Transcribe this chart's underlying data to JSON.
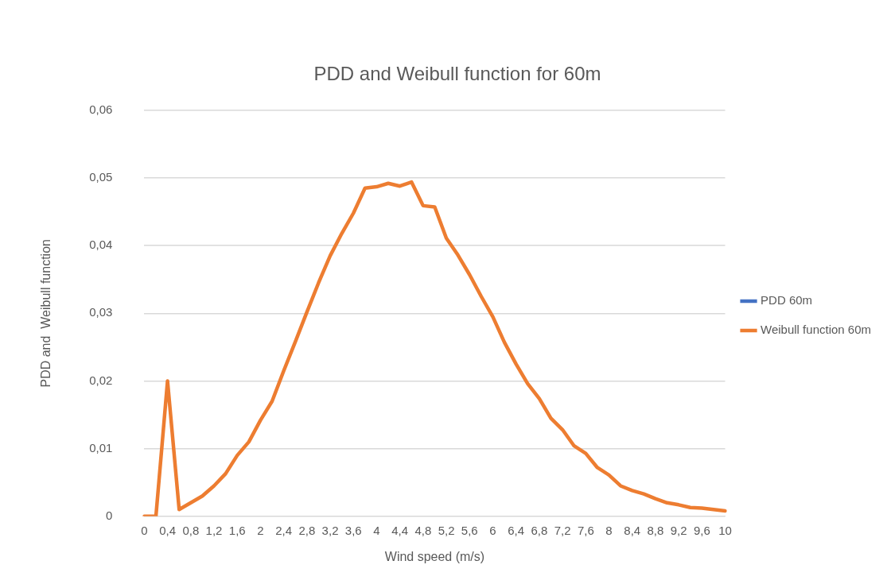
{
  "chart_data": {
    "type": "line",
    "title": "PDD and Weibull function for 60m",
    "xlabel": "Wind speed (m/s)",
    "ylabel": "PDD and  Weibull function",
    "categories": [
      "0",
      null,
      "0,4",
      null,
      "0,8",
      null,
      "1,2",
      null,
      "1,6",
      null,
      "2",
      null,
      "2,4",
      null,
      "2,8",
      null,
      "3,2",
      null,
      "3,6",
      null,
      "4",
      null,
      "4,4",
      null,
      "4,8",
      null,
      "5,2",
      null,
      "5,6",
      null,
      "6",
      null,
      "6,4",
      null,
      "6,8",
      null,
      "7,2",
      null,
      "7,6",
      null,
      "8",
      null,
      "8,4",
      null,
      "8,8",
      null,
      "9,2",
      null,
      "9,6",
      null,
      "10"
    ],
    "series": [
      {
        "name": "PDD 60m",
        "color": "#4472c4",
        "values": [
          null,
          null,
          null,
          null,
          null,
          null,
          null,
          null,
          null,
          null,
          null,
          null,
          null,
          null,
          null,
          null,
          null,
          null,
          null,
          null,
          null,
          null,
          null,
          null,
          null,
          null,
          null,
          null,
          null,
          null,
          null,
          null,
          null,
          null,
          null,
          null,
          null,
          null,
          null,
          null,
          null,
          null,
          null,
          null,
          null,
          null,
          null,
          null,
          null,
          null,
          null
        ]
      },
      {
        "name": "Weibull function 60m",
        "color": "#ed7d31",
        "values": [
          0,
          0,
          0.02,
          0.001,
          0.002,
          0.003,
          0.0045,
          0.0063,
          0.009,
          0.011,
          0.0142,
          0.017,
          0.0215,
          0.0258,
          0.0302,
          0.0345,
          0.0385,
          0.0418,
          0.0448,
          0.0485,
          0.0487,
          0.0492,
          0.0488,
          0.0494,
          0.0459,
          0.0457,
          0.0411,
          0.0386,
          0.0357,
          0.0325,
          0.0295,
          0.0257,
          0.0225,
          0.0196,
          0.0174,
          0.0145,
          0.0128,
          0.0104,
          0.0093,
          0.0072,
          0.0061,
          0.0045,
          0.0038,
          0.0033,
          0.0026,
          0.002,
          0.0017,
          0.0013,
          0.0012,
          0.001,
          0.0008
        ]
      }
    ],
    "ylim": [
      0,
      0.06
    ],
    "yticks": [
      0,
      {
        "value": 0.01,
        "label": "0,01"
      },
      {
        "value": 0.02,
        "label": "0,02"
      },
      {
        "value": 0.03,
        "label": "0,03"
      },
      {
        "value": 0.04,
        "label": "0,04"
      },
      {
        "value": 0.05,
        "label": "0,05"
      },
      {
        "value": 0.06,
        "label": "0,06"
      }
    ],
    "grid": "y",
    "legend": "right"
  }
}
